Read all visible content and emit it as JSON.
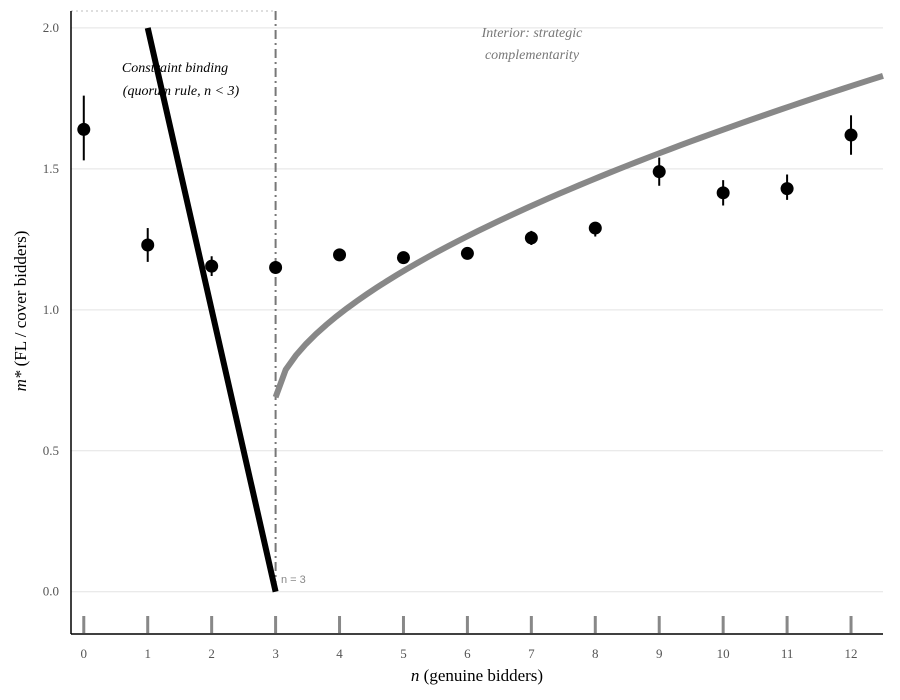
{
  "chart_data": {
    "type": "scatter",
    "title": "",
    "xlabel": "n (genuine bidders)",
    "xlabel_var": "n",
    "xlabel_rest": " (genuine bidders)",
    "ylabel": "m* (FL / cover bidders)",
    "ylabel_var": "m*",
    "ylabel_rest": " (FL / cover bidders)",
    "xlim": [
      -0.2,
      12.5
    ],
    "ylim": [
      -0.15,
      2.06
    ],
    "x_ticks": [
      0,
      1,
      2,
      3,
      4,
      5,
      6,
      7,
      8,
      9,
      10,
      11,
      12
    ],
    "x_tick_labels": [
      "0",
      "1",
      "2",
      "3",
      "4",
      "5",
      "6",
      "7",
      "8",
      "9",
      "10",
      "11",
      "12"
    ],
    "y_ticks": [
      0.0,
      0.5,
      1.0,
      1.5,
      2.0
    ],
    "y_tick_labels": [
      "0.0",
      "0.5",
      "1.0",
      "1.5",
      "2.0"
    ],
    "grid": "horizontal",
    "rug": true,
    "points": [
      {
        "x": 0,
        "y": 1.64,
        "lo": 1.53,
        "hi": 1.76
      },
      {
        "x": 1,
        "y": 1.23,
        "lo": 1.17,
        "hi": 1.29
      },
      {
        "x": 2,
        "y": 1.155,
        "lo": 1.12,
        "hi": 1.19
      },
      {
        "x": 3,
        "y": 1.15,
        "lo": 1.13,
        "hi": 1.17
      },
      {
        "x": 4,
        "y": 1.195,
        "lo": 1.18,
        "hi": 1.21
      },
      {
        "x": 5,
        "y": 1.185,
        "lo": 1.17,
        "hi": 1.2
      },
      {
        "x": 6,
        "y": 1.2,
        "lo": 1.18,
        "hi": 1.22
      },
      {
        "x": 7,
        "y": 1.255,
        "lo": 1.23,
        "hi": 1.28
      },
      {
        "x": 8,
        "y": 1.29,
        "lo": 1.26,
        "hi": 1.31
      },
      {
        "x": 9,
        "y": 1.49,
        "lo": 1.44,
        "hi": 1.54
      },
      {
        "x": 10,
        "y": 1.415,
        "lo": 1.37,
        "hi": 1.46
      },
      {
        "x": 11,
        "y": 1.43,
        "lo": 1.39,
        "hi": 1.48
      },
      {
        "x": 12,
        "y": 1.62,
        "lo": 1.55,
        "hi": 1.69
      }
    ],
    "binding_line": {
      "x": [
        1,
        3
      ],
      "y": [
        2.0,
        0.0
      ],
      "color": "#000000"
    },
    "interior_curve": {
      "x_start": 3,
      "x_end": 12.5,
      "y_at_3": 0.69,
      "y_at_12_5": 1.83,
      "exponent": 0.6,
      "color": "#888888"
    },
    "vline": {
      "x": 3,
      "label": "n = 3",
      "color": "#777777"
    },
    "annotations": {
      "constraint_line1": "Constraint binding",
      "constraint_line2": "(quorum rule, n < 3)",
      "interior_line1": "Interior: strategic",
      "interior_line2": "complementarity"
    }
  }
}
